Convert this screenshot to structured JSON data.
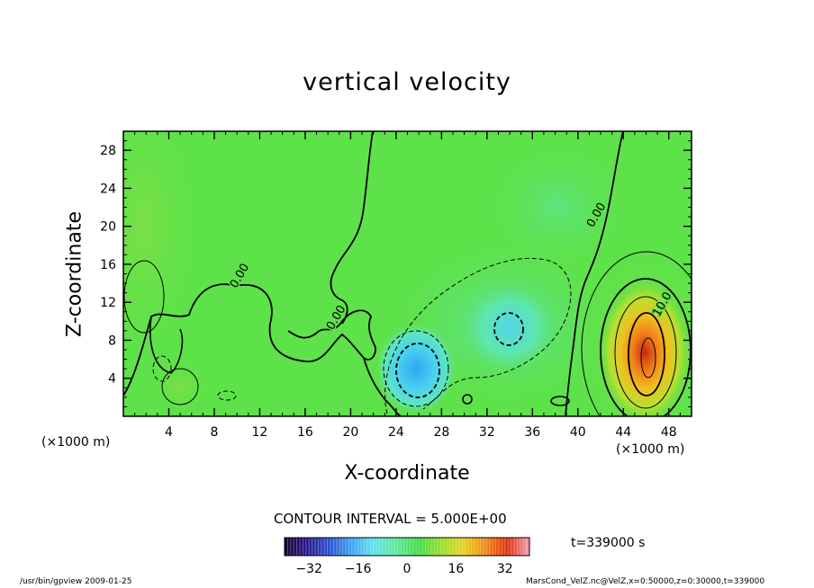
{
  "chart_data": {
    "type": "heatmap",
    "title": "vertical velocity",
    "xlabel": "X-coordinate",
    "ylabel": "Z-coordinate",
    "x_unit": "(×1000 m)",
    "xlim": [
      0,
      50
    ],
    "ylim": [
      0,
      30
    ],
    "x_ticks": [
      4,
      8,
      12,
      16,
      20,
      24,
      28,
      32,
      36,
      40,
      44,
      48
    ],
    "y_ticks": [
      4,
      8,
      12,
      16,
      20,
      24,
      28
    ],
    "contour_interval": "CONTOUR INTERVAL = 5.000E+00",
    "contour_labels": [
      {
        "text": "0.00",
        "x": 10.5,
        "y": 14.6
      },
      {
        "text": "0.00",
        "x": 19.0,
        "y": 10.2
      },
      {
        "text": "0.00",
        "x": 41.9,
        "y": 21.0
      },
      {
        "text": "10.0",
        "x": 47.7,
        "y": 11.6
      }
    ],
    "colorbar": {
      "range": [
        -40,
        40
      ],
      "ticks": [
        -32,
        -16,
        0,
        16,
        32
      ],
      "colors": [
        "#1a0030",
        "#2a1a8a",
        "#2a4fd0",
        "#3fa0f0",
        "#5fe0f0",
        "#5ee8a0",
        "#44dd44",
        "#9adf2e",
        "#e8d020",
        "#f08a18",
        "#e03010",
        "#f0a0b0"
      ]
    },
    "features": [
      {
        "name": "updraft",
        "x": 45.8,
        "y": 6.4,
        "peak": 30
      },
      {
        "name": "downdraft",
        "x": 25.8,
        "y": 4.8,
        "peak": -18
      },
      {
        "name": "downdraft",
        "x": 33.8,
        "y": 9.8,
        "peak": -8
      }
    ],
    "time": "t=339000 s",
    "footer_left": "/usr/bin/gpview   2009-01-25",
    "footer_right": "MarsCond_VelZ.nc@VelZ,x=0:50000,z=0:30000,t=339000"
  }
}
